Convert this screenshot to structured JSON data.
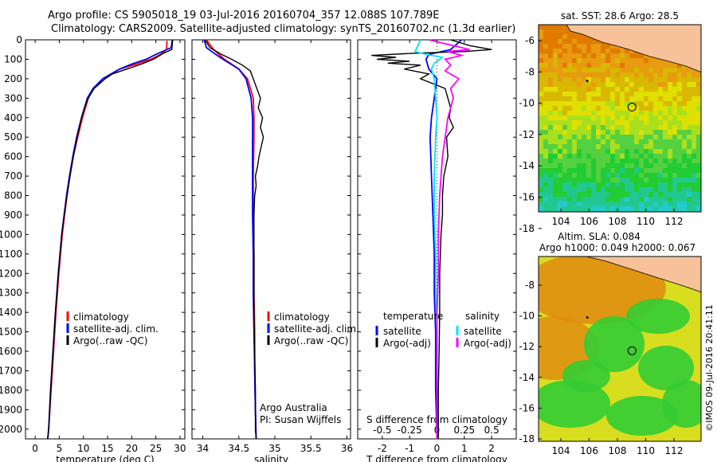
{
  "header": {
    "line1": "Argo profile: CS 5905018_19 03-Jul-2016 20160704_357 12.088S 107.789E",
    "line2": "Climatology: CARS2009. Satellite-adjusted climatology: synTS_20160702.nc (1.3d earlier)"
  },
  "chart_data": [
    {
      "type": "line",
      "xlabel": "temperature (deg C)",
      "ylim": [
        0,
        2050
      ],
      "xlim": [
        -2,
        31
      ],
      "yticks": [
        0,
        100,
        200,
        300,
        400,
        500,
        600,
        700,
        800,
        900,
        1000,
        1100,
        1200,
        1300,
        1400,
        1500,
        1600,
        1700,
        1800,
        1900,
        2000
      ],
      "xticks": [
        0,
        5,
        10,
        15,
        20,
        25,
        30
      ],
      "legend": [
        "climatology",
        "satellite-adj. clim.",
        "Argo(..raw -QC)"
      ],
      "legend_position": "bottom-center",
      "series": [
        {
          "name": "climatology",
          "color": "#ff0000",
          "depth": [
            5,
            50,
            75,
            100,
            125,
            150,
            200,
            250,
            300,
            400,
            500,
            600,
            700,
            800,
            900,
            1000,
            1200,
            1400,
            1600,
            1800,
            2000,
            2050
          ],
          "values": [
            27.3,
            27.2,
            26,
            24,
            21,
            17.5,
            14,
            12,
            11,
            9.8,
            8.8,
            7.9,
            7.2,
            6.6,
            6.1,
            5.6,
            4.9,
            4.3,
            3.8,
            3.3,
            2.8,
            2.6
          ]
        },
        {
          "name": "satellite-adj. clim.",
          "color": "#0000ff",
          "depth": [
            0,
            40,
            75,
            100,
            125,
            150,
            200,
            250,
            300,
            400,
            500,
            600,
            700,
            800,
            900,
            1000,
            1200,
            1400,
            1600,
            1800,
            2000,
            2050
          ],
          "values": [
            28.4,
            28.2,
            25,
            23,
            20,
            17.5,
            14,
            12,
            10.8,
            9.6,
            8.6,
            7.8,
            7.1,
            6.5,
            6,
            5.5,
            4.8,
            4.2,
            3.7,
            3.2,
            2.8,
            2.6
          ]
        },
        {
          "name": "Argo(..raw -QC)",
          "color": "#000000",
          "depth": [
            0,
            50,
            70,
            100,
            125,
            150,
            175,
            200,
            250,
            300,
            350,
            400,
            500,
            600,
            700,
            800,
            900,
            1000,
            1200,
            1400,
            1600,
            1800,
            2000,
            2050
          ],
          "values": [
            28.5,
            28.3,
            26.5,
            24.5,
            22,
            19,
            16,
            14.5,
            12.2,
            11,
            10.2,
            9.6,
            8.7,
            7.9,
            7.2,
            6.6,
            6,
            5.5,
            4.8,
            4.2,
            3.7,
            3.2,
            2.8,
            2.6
          ]
        }
      ]
    },
    {
      "type": "line",
      "xlabel": "salinity",
      "ylim": [
        0,
        2050
      ],
      "xlim": [
        33.85,
        36.05
      ],
      "xticks": [
        34,
        34.5,
        35,
        35.5,
        36
      ],
      "xticklabels": [
        "34",
        "34.5",
        "35",
        "35.5",
        "36"
      ],
      "legend": [
        "climatology",
        "satellite-adj. clim.",
        "Argo(..raw -QC)"
      ],
      "legend_position": "bottom-right",
      "annotation": [
        "Argo Australia",
        "PI: Susan Wijffels"
      ],
      "series": [
        {
          "name": "climatology",
          "color": "#ff0000",
          "depth": [
            0,
            50,
            100,
            150,
            200,
            300,
            400,
            500,
            700,
            900,
            1100,
            1300,
            1500,
            1700,
            1900,
            2050
          ],
          "values": [
            34.05,
            34.15,
            34.3,
            34.5,
            34.62,
            34.7,
            34.71,
            34.71,
            34.7,
            34.7,
            34.71,
            34.71,
            34.72,
            34.72,
            34.73,
            34.74
          ]
        },
        {
          "name": "satellite-adj. clim.",
          "color": "#0000ff",
          "depth": [
            0,
            40,
            75,
            100,
            150,
            200,
            300,
            400,
            500,
            700,
            900,
            1100,
            1300,
            1500,
            1700,
            1900,
            2050
          ],
          "values": [
            34.02,
            34.05,
            34.18,
            34.28,
            34.5,
            34.6,
            34.67,
            34.69,
            34.69,
            34.69,
            34.69,
            34.7,
            34.7,
            34.71,
            34.72,
            34.73,
            34.74
          ]
        },
        {
          "name": "Argo(..raw -QC)",
          "color": "#000000",
          "depth": [
            0,
            40,
            75,
            100,
            130,
            160,
            200,
            250,
            300,
            350,
            400,
            450,
            500,
            550,
            600,
            650,
            700,
            750,
            800,
            900,
            1000,
            1200,
            1400,
            1600,
            1800,
            2000,
            2050
          ],
          "values": [
            34.03,
            34.1,
            34.26,
            34.4,
            34.55,
            34.66,
            34.7,
            34.75,
            34.8,
            34.77,
            34.83,
            34.8,
            34.84,
            34.81,
            34.78,
            34.76,
            34.73,
            34.74,
            34.72,
            34.71,
            34.71,
            34.71,
            34.71,
            34.72,
            34.73,
            34.73,
            34.74
          ]
        }
      ]
    },
    {
      "type": "line",
      "xlabel": "T difference from climatology",
      "ylim": [
        0,
        2050
      ],
      "xlim": [
        -2.9,
        2.9
      ],
      "xticks": [
        -2,
        -1,
        0,
        1,
        2
      ],
      "top_tick_labels": [
        "-0.5",
        "-0.25",
        "0",
        "0.25",
        "0.5"
      ],
      "top_label": "S difference from climatology",
      "legend_headers": [
        "temperature",
        "salinity"
      ],
      "legend": [
        "satellite",
        "Argo(-adj)",
        "satellite",
        "Argo(-adj)"
      ],
      "legend_position": "bottom-center",
      "series": [
        {
          "name": "satellite",
          "group": "temperature",
          "color": "#0000ff",
          "depth": [
            0,
            50,
            75,
            100,
            150,
            200,
            300,
            400,
            500,
            700,
            900,
            1100,
            1300,
            1500,
            1800,
            2050
          ],
          "values": [
            0.9,
            0.5,
            -0.3,
            -0.4,
            -0.3,
            0,
            -0.1,
            -0.2,
            -0.25,
            -0.2,
            -0.15,
            -0.1,
            -0.1,
            -0.05,
            -0.05,
            0
          ]
        },
        {
          "name": "Argo(-adj)",
          "group": "temperature",
          "color": "#000000",
          "depth": [
            0,
            30,
            50,
            60,
            70,
            80,
            90,
            100,
            110,
            120,
            130,
            150,
            175,
            200,
            250,
            300,
            350,
            400,
            450,
            500,
            600,
            700,
            800,
            900,
            1000,
            1200,
            1400,
            1600,
            1800,
            2050
          ],
          "values": [
            0.5,
            1.2,
            2.0,
            1.0,
            -1.0,
            -2.4,
            -1.5,
            -2.2,
            -1.0,
            -1.8,
            -0.6,
            -1.2,
            -0.3,
            -0.6,
            0.3,
            0.4,
            0.5,
            0.45,
            0.6,
            0.35,
            0.4,
            0.25,
            0.2,
            0.2,
            0.15,
            0.1,
            0.1,
            0.08,
            0.05,
            0.05
          ]
        },
        {
          "name": "satellite",
          "group": "salinity",
          "color": "#00e5ee",
          "depth": [
            0,
            60,
            75,
            90,
            100,
            120,
            150,
            200,
            300,
            400,
            500,
            700,
            900,
            1100,
            1300,
            1500,
            1800,
            2050
          ],
          "values": [
            -0.6,
            -0.8,
            -0.4,
            0.2,
            0.1,
            -0.1,
            -0.2,
            -0.1,
            -0.05,
            0,
            -0.05,
            -0.1,
            -0.1,
            -0.05,
            -0.05,
            0,
            0,
            0
          ]
        },
        {
          "name": "Argo(-adj)",
          "group": "salinity",
          "color": "#ff00ff",
          "depth": [
            0,
            50,
            60,
            80,
            100,
            130,
            160,
            200,
            250,
            300,
            400,
            500,
            600,
            700,
            800,
            1000,
            1200,
            1400,
            1600,
            1800,
            2050
          ],
          "values": [
            -0.3,
            1.2,
            0.4,
            0.9,
            0.3,
            0.5,
            0.3,
            0.8,
            0.5,
            0.6,
            0.4,
            0.3,
            0.2,
            0.15,
            0.1,
            0.05,
            0.05,
            0,
            0,
            0,
            0
          ]
        }
      ]
    }
  ],
  "maps": {
    "sst": {
      "title": "sat. SST: 28.6 Argo: 28.5",
      "xticks": [
        "104",
        "106",
        "108",
        "110",
        "112"
      ],
      "yticks": [
        "-6",
        "-8",
        "-10",
        "-12",
        "-14",
        "-16",
        "-18"
      ],
      "colors": {
        "land": "#f7c29a",
        "warm": "#e07b00",
        "mid": "#e0e000",
        "cool": "#22cc33",
        "cold": "#22cccc"
      }
    },
    "sla": {
      "title1": "Altim. SLA: 0.084",
      "title2": "Argo h1000: 0.049 h2000: 0.067",
      "xticks": [
        "104",
        "106",
        "108",
        "110",
        "112"
      ],
      "yticks": [
        "-8",
        "-10",
        "-12",
        "-14",
        "-16",
        "-18"
      ],
      "colors": {
        "land": "#f7c29a",
        "high": "#e08a10",
        "mid": "#d8dd20",
        "low": "#33cc33"
      }
    }
  },
  "credit": "©IMOS 09-Jul-2016 20:41:11"
}
